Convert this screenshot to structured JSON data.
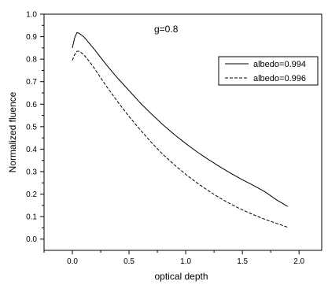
{
  "chart_data": {
    "type": "line",
    "title": "",
    "xlabel": "optical depth",
    "ylabel": "Normalized fluence",
    "xlim": [
      -0.25,
      2.2
    ],
    "ylim": [
      -0.05,
      1.0
    ],
    "xticks": [
      0.0,
      0.5,
      1.0,
      1.5,
      2.0
    ],
    "xtick_labels": [
      "0.0",
      "0.5",
      "1.0",
      "1.5",
      "2.0"
    ],
    "yticks": [
      0.0,
      0.1,
      0.2,
      0.3,
      0.4,
      0.5,
      0.6,
      0.7,
      0.8,
      0.9,
      1.0
    ],
    "ytick_labels": [
      "0.0",
      "0.1",
      "0.2",
      "0.3",
      "0.4",
      "0.5",
      "0.6",
      "0.7",
      "0.8",
      "0.9",
      "1.0"
    ],
    "annotation": "g=0.8",
    "grid": false,
    "legend_position": "top-right",
    "series": [
      {
        "name": "albedo=0.994",
        "style": "solid",
        "color": "#000000",
        "x": [
          0.0,
          0.02,
          0.04,
          0.06,
          0.1,
          0.15,
          0.2,
          0.3,
          0.4,
          0.5,
          0.6,
          0.7,
          0.8,
          0.9,
          1.0,
          1.1,
          1.2,
          1.3,
          1.4,
          1.5,
          1.6,
          1.7,
          1.8,
          1.9
        ],
        "y": [
          0.85,
          0.895,
          0.918,
          0.915,
          0.9,
          0.87,
          0.84,
          0.775,
          0.715,
          0.66,
          0.605,
          0.555,
          0.508,
          0.465,
          0.425,
          0.388,
          0.354,
          0.322,
          0.292,
          0.264,
          0.238,
          0.21,
          0.175,
          0.145
        ]
      },
      {
        "name": "albedo=0.996",
        "style": "dashed",
        "color": "#000000",
        "x": [
          0.0,
          0.02,
          0.04,
          0.06,
          0.1,
          0.15,
          0.2,
          0.3,
          0.4,
          0.5,
          0.6,
          0.7,
          0.8,
          0.9,
          1.0,
          1.1,
          1.2,
          1.3,
          1.4,
          1.5,
          1.6,
          1.7,
          1.8,
          1.9
        ],
        "y": [
          0.795,
          0.82,
          0.835,
          0.835,
          0.82,
          0.79,
          0.755,
          0.68,
          0.61,
          0.545,
          0.485,
          0.428,
          0.376,
          0.33,
          0.288,
          0.25,
          0.215,
          0.183,
          0.155,
          0.13,
          0.108,
          0.088,
          0.07,
          0.053
        ]
      }
    ]
  }
}
